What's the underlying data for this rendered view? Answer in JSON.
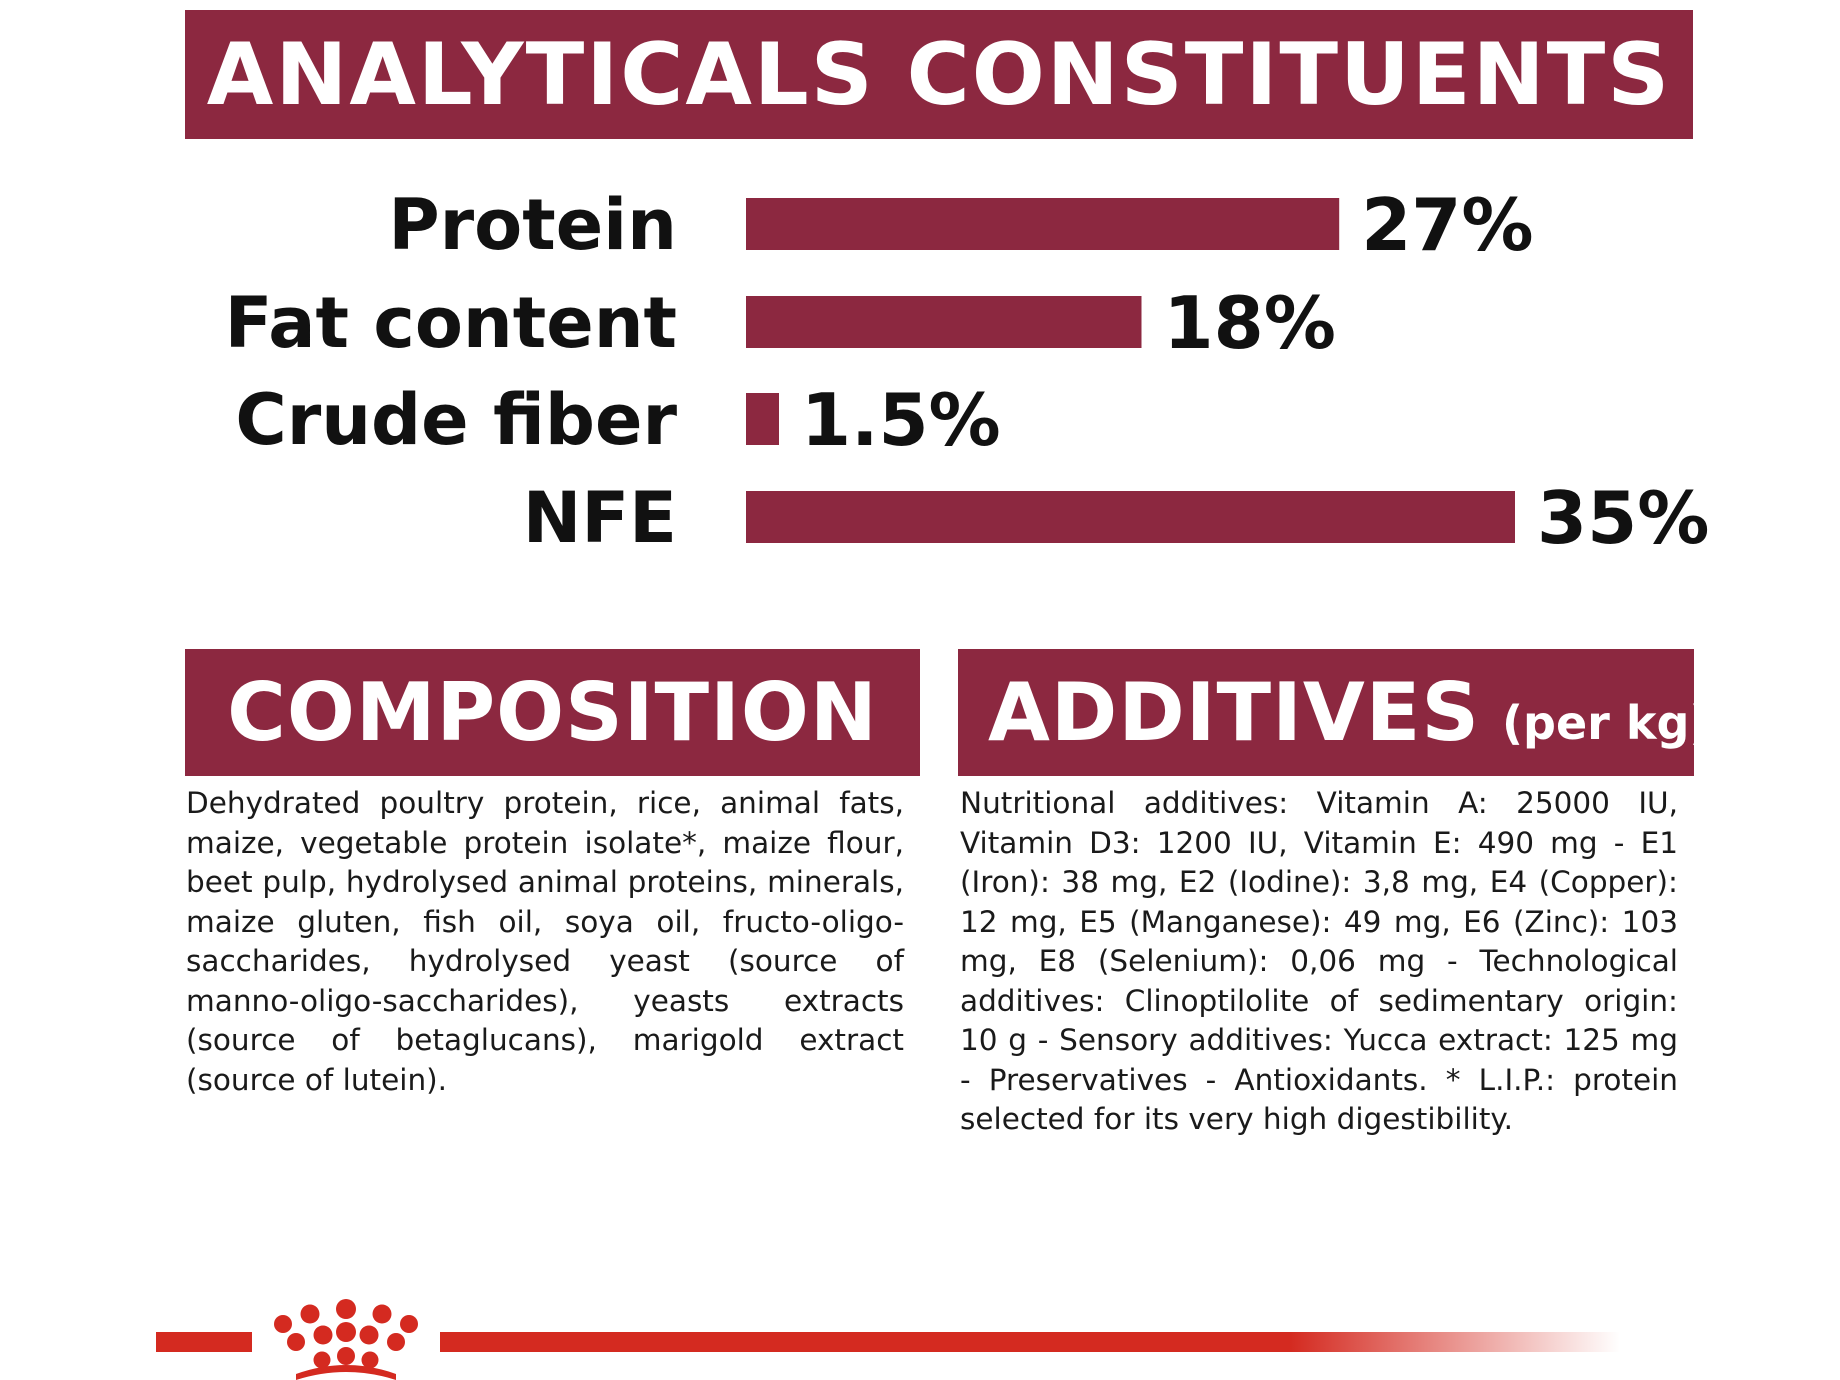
{
  "analytical": {
    "title": "ANALYTICALS CONSTITUENTS"
  },
  "chart_data": {
    "type": "bar",
    "orientation": "horizontal",
    "categories": [
      "Protein",
      "Fat content",
      "Crude fiber",
      "NFE"
    ],
    "values": [
      27,
      18,
      1.5,
      35
    ],
    "value_labels": [
      "27%",
      "18%",
      "1.5%",
      "35%"
    ],
    "unit": "%",
    "title": "ANALYTICALS CONSTITUENTS",
    "xlim": [
      0,
      35
    ],
    "grid": false,
    "bar_color": "#8c2840"
  },
  "composition": {
    "title": "COMPOSITION",
    "text": "Dehydrated poultry protein, rice, animal fats, maize, vegetable protein isolate*, maize flour, beet pulp, hydrolysed animal proteins, minerals, maize gluten, fish oil, soya oil, fructo-oligo-saccharides, hydrolysed yeast (source of manno-oligo-saccharides), yeasts extracts (source of betaglucans), marigold extract (source of lutein)."
  },
  "additives": {
    "title": "ADDITIVES",
    "subtitle": "(per kg)",
    "text": "Nutritional additives: Vitamin A: 25000 IU, Vitamin D3: 1200 IU, Vitamin E: 490 mg - E1 (Iron): 38 mg, E2 (Iodine): 3,8 mg, E4 (Copper): 12 mg, E5 (Manganese): 49 mg, E6 (Zinc): 103 mg, E8 (Selenium): 0,06 mg - Technological additives: Clinoptilolite of sedimentary origin: 10 g - Sensory additives: Yucca extract: 125 mg - Preservatives - Antioxidants. * L.I.P.: protein selected for its very high digestibility."
  },
  "colors": {
    "brand": "#8c2840",
    "footer_red": "#d42a20"
  },
  "footer": {
    "logo_icon": "royal-crown-icon"
  }
}
